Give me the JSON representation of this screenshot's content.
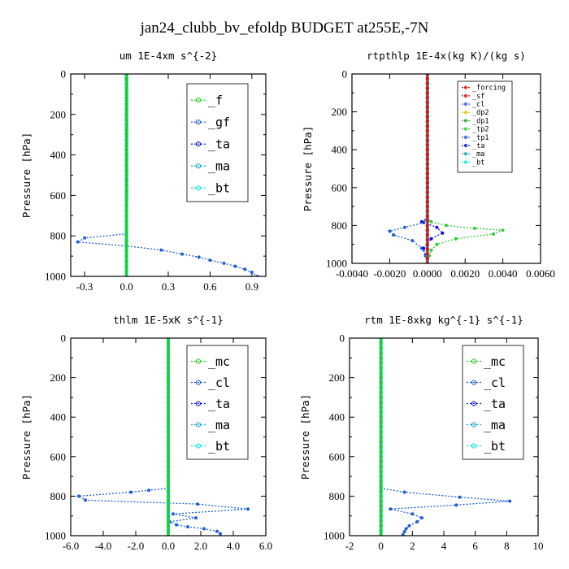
{
  "figure": {
    "title": "jan24_clubb_bv_efoldp  BUDGET at255E,-7N"
  },
  "colors": {
    "_f": "#22cc22",
    "_mc": "#22cc22",
    "_gf": "#1f5fd6",
    "_cl": "#1f5fd6",
    "_ta": "#1010e0",
    "_ma": "#10a8c8",
    "_bt": "#00e5ee",
    "_forcing": "#e01010",
    "_sf": "#e01010",
    "_dp2": "#e8c000",
    "_dp1": "#22aa22",
    "_tp2": "#33cc33",
    "_tp1": "#1f5fd6"
  },
  "chart_data": [
    {
      "type": "line",
      "title": "um  1E-4xm s^{-2}",
      "ylabel": "Pressure [hPa]",
      "ylim": [
        1000,
        0
      ],
      "xlim": [
        -0.4,
        1.0
      ],
      "xticks": [
        "-0.3",
        "0.0",
        "0.3",
        "0.6",
        "0.9"
      ],
      "yticks": [
        "0",
        "200",
        "400",
        "600",
        "800",
        "1000"
      ],
      "legend_position": "top-right",
      "series": [
        {
          "name": "_f",
          "x": [
            0,
            0
          ],
          "y": [
            0,
            1000
          ]
        },
        {
          "name": "_gf",
          "x": [
            0.01,
            0.01,
            0.0,
            0.0,
            -0.3,
            -0.35,
            0.0,
            0.25,
            0.4,
            0.52,
            0.6,
            0.7,
            0.78,
            0.85,
            0.9,
            0.94
          ],
          "y": [
            0,
            600,
            780,
            790,
            810,
            830,
            850,
            870,
            890,
            905,
            920,
            935,
            950,
            965,
            980,
            1000
          ]
        },
        {
          "name": "_ta",
          "x": [
            0,
            0
          ],
          "y": [
            0,
            1000
          ]
        },
        {
          "name": "_ma",
          "x": [
            0,
            0
          ],
          "y": [
            0,
            1000
          ]
        },
        {
          "name": "_bt",
          "x": [
            0,
            0
          ],
          "y": [
            0,
            1000
          ]
        }
      ],
      "legend": [
        "_f",
        "_gf",
        "_ta",
        "_ma",
        "_bt"
      ]
    },
    {
      "type": "line",
      "title": "rtpthlp  1E-4x(kg K)/(kg s)",
      "ylabel": "Pressure [hPa]",
      "ylim": [
        1000,
        0
      ],
      "xlim": [
        -0.004,
        0.006
      ],
      "xticks": [
        "-0.0040",
        "-0.0020",
        "0.0000",
        "0.0020",
        "0.0040",
        "0.0060"
      ],
      "yticks": [
        "0",
        "200",
        "400",
        "600",
        "800",
        "1000"
      ],
      "legend_position": "top-right",
      "series": [
        {
          "name": "_forcing",
          "x": [
            0,
            0
          ],
          "y": [
            0,
            1000
          ]
        },
        {
          "name": "_sf",
          "x": [
            0,
            0
          ],
          "y": [
            0,
            1000
          ]
        },
        {
          "name": "_cl",
          "x": [
            0,
            0
          ],
          "y": [
            0,
            1000
          ]
        },
        {
          "name": "_dp2",
          "x": [
            0,
            0
          ],
          "y": [
            0,
            1000
          ]
        },
        {
          "name": "_dp1",
          "x": [
            0,
            0
          ],
          "y": [
            0,
            1000
          ]
        },
        {
          "name": "_tp2",
          "x": [
            0,
            0,
            0.0002,
            0.001,
            0.0025,
            0.004,
            0.0035,
            0.0015,
            0.0005,
            0.0002,
            0.0001,
            0
          ],
          "y": [
            0,
            760,
            780,
            800,
            815,
            825,
            845,
            870,
            900,
            930,
            960,
            1000
          ]
        },
        {
          "name": "_tp1",
          "x": [
            0,
            0,
            -0.0002,
            -0.0012,
            -0.002,
            -0.0018,
            -0.0008,
            -0.0003,
            -0.0001,
            0
          ],
          "y": [
            0,
            760,
            785,
            810,
            830,
            850,
            880,
            920,
            960,
            1000
          ]
        },
        {
          "name": "_ta",
          "x": [
            0,
            0,
            -0.0003,
            0.0005,
            0.0008,
            0.0002,
            -0.0002,
            0
          ],
          "y": [
            0,
            760,
            780,
            810,
            840,
            870,
            920,
            1000
          ]
        },
        {
          "name": "_ma",
          "x": [
            0,
            0
          ],
          "y": [
            0,
            1000
          ]
        },
        {
          "name": "_bt",
          "x": [
            0,
            0
          ],
          "y": [
            0,
            1000
          ]
        }
      ],
      "legend": [
        "_forcing",
        "_sf",
        "_cl",
        "_dp2",
        "_dp1",
        "_tp2",
        "_tp1",
        "_ta",
        "_ma",
        "_bt"
      ]
    },
    {
      "type": "line",
      "title": "thlm  1E-5xK s^{-1}",
      "ylabel": "Pressure [hPa]",
      "ylim": [
        1000,
        0
      ],
      "xlim": [
        -6.0,
        6.0
      ],
      "xticks": [
        "-6.0",
        "-4.0",
        "-2.0",
        "0.0",
        "2.0",
        "4.0",
        "6.0"
      ],
      "yticks": [
        "0",
        "200",
        "400",
        "600",
        "800",
        "1000"
      ],
      "legend_position": "top-right",
      "series": [
        {
          "name": "_mc",
          "x": [
            0,
            0
          ],
          "y": [
            0,
            1000
          ]
        },
        {
          "name": "_cl",
          "x": [
            0,
            0,
            -1.2,
            -2.3,
            -5.5,
            -5.1,
            1.8,
            4.9,
            0.3,
            1.7,
            0.1,
            0.5,
            1.2,
            2.2,
            3.0,
            3.2
          ],
          "y": [
            0,
            760,
            770,
            780,
            800,
            820,
            840,
            865,
            890,
            910,
            930,
            945,
            955,
            965,
            978,
            990
          ]
        },
        {
          "name": "_ta",
          "x": [
            0,
            0
          ],
          "y": [
            0,
            1000
          ]
        },
        {
          "name": "_ma",
          "x": [
            0,
            0
          ],
          "y": [
            0,
            1000
          ]
        },
        {
          "name": "_bt",
          "x": [
            0,
            0
          ],
          "y": [
            0,
            1000
          ]
        }
      ],
      "legend": [
        "_mc",
        "_cl",
        "_ta",
        "_ma",
        "_bt"
      ]
    },
    {
      "type": "line",
      "title": "rtm  1E-8xkg kg^{-1} s^{-1}",
      "ylabel": "Pressure [hPa]",
      "ylim": [
        1000,
        0
      ],
      "xlim": [
        -2,
        10
      ],
      "xticks": [
        "-2",
        "0",
        "2",
        "4",
        "6",
        "8",
        "10"
      ],
      "yticks": [
        "0",
        "200",
        "400",
        "600",
        "800",
        "1000"
      ],
      "legend_position": "top-right",
      "series": [
        {
          "name": "_mc",
          "x": [
            0,
            0
          ],
          "y": [
            0,
            1000
          ]
        },
        {
          "name": "_cl",
          "x": [
            0,
            0,
            1.5,
            5.0,
            8.2,
            4.8,
            0.6,
            2.0,
            2.6,
            2.3,
            1.8,
            1.6,
            1.5,
            1.4
          ],
          "y": [
            0,
            760,
            780,
            805,
            825,
            845,
            865,
            890,
            910,
            930,
            950,
            965,
            980,
            995
          ]
        },
        {
          "name": "_ta",
          "x": [
            0,
            0
          ],
          "y": [
            0,
            1000
          ]
        },
        {
          "name": "_ma",
          "x": [
            0,
            0
          ],
          "y": [
            0,
            1000
          ]
        },
        {
          "name": "_bt",
          "x": [
            0,
            0
          ],
          "y": [
            0,
            1000
          ]
        }
      ],
      "legend": [
        "_mc",
        "_cl",
        "_ta",
        "_ma",
        "_bt"
      ]
    }
  ]
}
